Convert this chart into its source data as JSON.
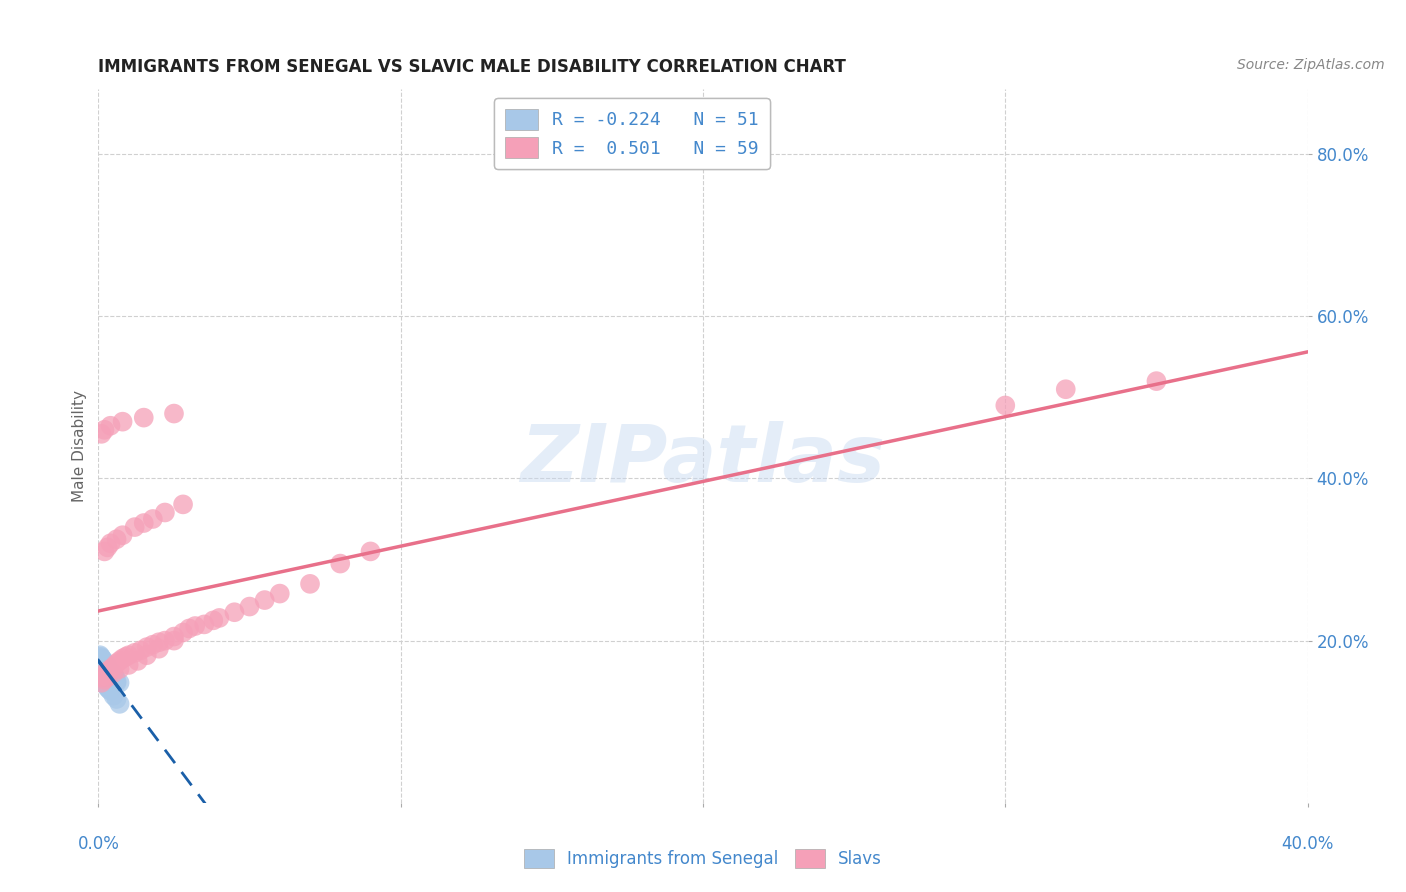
{
  "title": "IMMIGRANTS FROM SENEGAL VS SLAVIC MALE DISABILITY CORRELATION CHART",
  "source": "Source: ZipAtlas.com",
  "ylabel": "Male Disability",
  "ytick_labels": [
    "80.0%",
    "60.0%",
    "40.0%",
    "20.0%"
  ],
  "ytick_vals": [
    0.8,
    0.6,
    0.4,
    0.2
  ],
  "xlim": [
    0.0,
    0.4
  ],
  "ylim": [
    0.0,
    0.88
  ],
  "senegal_R": -0.224,
  "senegal_N": 51,
  "slavs_R": 0.501,
  "slavs_N": 59,
  "senegal_color": "#a8c8e8",
  "slavs_color": "#f5a0b8",
  "senegal_line_color": "#1a5fa8",
  "slavs_line_color": "#e8708a",
  "watermark": "ZIPatlas",
  "legend_senegal": "Immigrants from Senegal",
  "legend_slavs": "Slavs",
  "senegal_x": [
    0.0005,
    0.001,
    0.0012,
    0.0015,
    0.002,
    0.002,
    0.0022,
    0.0025,
    0.003,
    0.003,
    0.0035,
    0.004,
    0.004,
    0.0045,
    0.005,
    0.005,
    0.0055,
    0.006,
    0.006,
    0.007,
    0.0005,
    0.001,
    0.0015,
    0.002,
    0.0025,
    0.003,
    0.0035,
    0.004,
    0.0045,
    0.005,
    0.0008,
    0.0012,
    0.0018,
    0.0022,
    0.0028,
    0.0032,
    0.0038,
    0.0042,
    0.0048,
    0.0055,
    0.0005,
    0.001,
    0.0015,
    0.002,
    0.0025,
    0.003,
    0.0035,
    0.004,
    0.005,
    0.006,
    0.007
  ],
  "senegal_y": [
    0.175,
    0.168,
    0.172,
    0.165,
    0.162,
    0.17,
    0.168,
    0.165,
    0.162,
    0.158,
    0.16,
    0.158,
    0.155,
    0.158,
    0.155,
    0.152,
    0.155,
    0.15,
    0.148,
    0.148,
    0.182,
    0.178,
    0.175,
    0.172,
    0.17,
    0.168,
    0.165,
    0.162,
    0.16,
    0.158,
    0.18,
    0.178,
    0.175,
    0.172,
    0.168,
    0.165,
    0.162,
    0.16,
    0.158,
    0.155,
    0.155,
    0.152,
    0.15,
    0.148,
    0.145,
    0.142,
    0.14,
    0.138,
    0.132,
    0.128,
    0.122
  ],
  "slavs_x": [
    0.001,
    0.002,
    0.003,
    0.004,
    0.005,
    0.006,
    0.007,
    0.008,
    0.009,
    0.01,
    0.012,
    0.014,
    0.016,
    0.018,
    0.02,
    0.022,
    0.025,
    0.028,
    0.03,
    0.032,
    0.035,
    0.038,
    0.04,
    0.045,
    0.05,
    0.055,
    0.06,
    0.07,
    0.08,
    0.09,
    0.001,
    0.002,
    0.003,
    0.005,
    0.007,
    0.01,
    0.013,
    0.016,
    0.02,
    0.025,
    0.002,
    0.003,
    0.004,
    0.006,
    0.008,
    0.012,
    0.015,
    0.018,
    0.022,
    0.028,
    0.001,
    0.002,
    0.004,
    0.008,
    0.015,
    0.025,
    0.3,
    0.32,
    0.35
  ],
  "slavs_y": [
    0.155,
    0.16,
    0.162,
    0.165,
    0.168,
    0.172,
    0.175,
    0.178,
    0.18,
    0.182,
    0.185,
    0.188,
    0.192,
    0.195,
    0.198,
    0.2,
    0.205,
    0.21,
    0.215,
    0.218,
    0.22,
    0.225,
    0.228,
    0.235,
    0.242,
    0.25,
    0.258,
    0.27,
    0.295,
    0.31,
    0.148,
    0.152,
    0.155,
    0.16,
    0.165,
    0.17,
    0.175,
    0.182,
    0.19,
    0.2,
    0.31,
    0.315,
    0.32,
    0.325,
    0.33,
    0.34,
    0.345,
    0.35,
    0.358,
    0.368,
    0.455,
    0.46,
    0.465,
    0.47,
    0.475,
    0.48,
    0.49,
    0.51,
    0.52
  ],
  "background_color": "#ffffff",
  "grid_color": "#d0d0d0"
}
